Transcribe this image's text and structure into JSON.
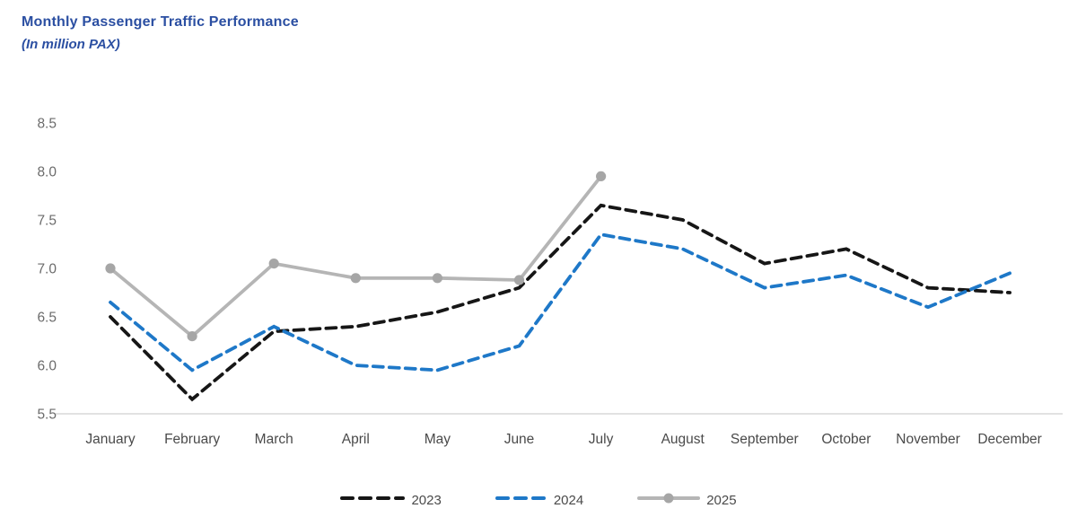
{
  "title": "Monthly Passenger Traffic Performance",
  "subtitle": "(In million PAX)",
  "title_color": "#2b4fa2",
  "chart_data": {
    "type": "line",
    "title": "Monthly Passenger Traffic Performance",
    "subtitle": "(In million PAX)",
    "categories": [
      "January",
      "February",
      "March",
      "April",
      "May",
      "June",
      "July",
      "August",
      "September",
      "October",
      "November",
      "December"
    ],
    "series": [
      {
        "name": "2023",
        "color": "#161616",
        "line_style": "dashed",
        "marker": "none",
        "values": [
          6.5,
          5.65,
          6.35,
          6.4,
          6.55,
          6.8,
          7.65,
          7.5,
          7.05,
          7.2,
          6.8,
          6.75
        ]
      },
      {
        "name": "2024",
        "color": "#1e78c8",
        "line_style": "dashed",
        "marker": "none",
        "values": [
          6.65,
          5.95,
          6.4,
          6.0,
          5.95,
          6.2,
          7.35,
          7.2,
          6.8,
          6.93,
          6.6,
          6.95
        ]
      },
      {
        "name": "2025",
        "color": "#b5b5b5",
        "marker_color": "#a6a6a6",
        "line_style": "solid",
        "marker": "circle",
        "values": [
          7.0,
          6.3,
          7.05,
          6.9,
          6.9,
          6.88,
          7.95,
          null,
          null,
          null,
          null,
          null
        ]
      }
    ],
    "yticks": [
      "5.5",
      "6.0",
      "6.5",
      "7.0",
      "7.5",
      "8.0",
      "8.5"
    ],
    "ylim": [
      5.5,
      8.5
    ],
    "xlabel": "",
    "ylabel": "",
    "grid": "off",
    "axis_line_color": "#d9d9d9",
    "legend_position": "bottom"
  }
}
